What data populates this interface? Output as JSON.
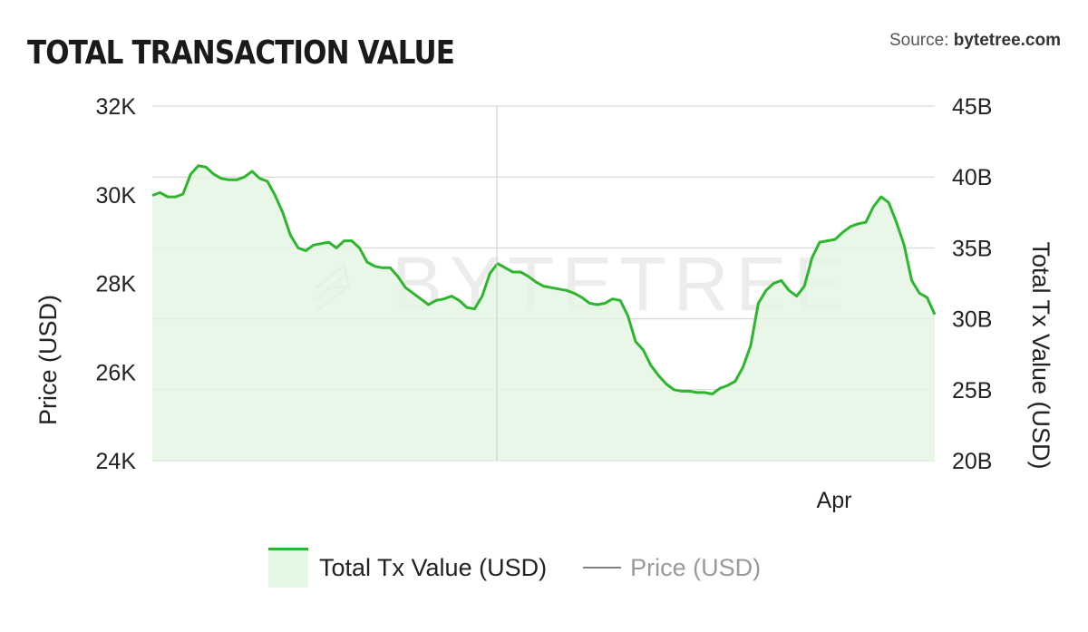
{
  "header": {
    "title": "TOTAL TRANSACTION VALUE",
    "source_prefix": "Source: ",
    "source_name": "bytetree.com"
  },
  "watermark": "BYTETREE",
  "colors": {
    "series_line": "#2db52d",
    "series_fill": "#e4f6e4",
    "grid": "#d0d0d0",
    "price_line": "#808080"
  },
  "chart_data": {
    "type": "area",
    "title": "TOTAL TRANSACTION VALUE",
    "y_left": {
      "label": "Price (USD)",
      "ticks": [
        "24K",
        "26K",
        "28K",
        "30K",
        "32K"
      ],
      "range": [
        24000,
        32000
      ]
    },
    "y_right": {
      "label": "Total Tx Value (USD)",
      "ticks": [
        "20B",
        "25B",
        "30B",
        "35B",
        "40B",
        "45B"
      ],
      "range": [
        20,
        45
      ]
    },
    "x_tick_labels": [
      "Apr"
    ],
    "grid": true,
    "legend_position": "bottom",
    "series": [
      {
        "name": "Total Tx Value (USD)",
        "axis": "right",
        "style": "area",
        "values": [
          38.7,
          38.9,
          38.6,
          38.6,
          38.8,
          40.2,
          40.8,
          40.7,
          40.2,
          39.9,
          39.8,
          39.8,
          40.0,
          40.4,
          39.9,
          39.7,
          38.7,
          37.5,
          35.9,
          35.0,
          34.8,
          35.2,
          35.3,
          35.4,
          35.0,
          35.5,
          35.5,
          35.0,
          34.0,
          33.7,
          33.6,
          33.6,
          33.0,
          32.2,
          31.8,
          31.4,
          31.0,
          31.3,
          31.4,
          31.6,
          31.3,
          30.8,
          30.7,
          31.6,
          33.2,
          33.9,
          33.6,
          33.3,
          33.3,
          33.0,
          32.6,
          32.3,
          32.2,
          32.1,
          32.0,
          31.8,
          31.5,
          31.1,
          31.0,
          31.1,
          31.4,
          31.3,
          30.2,
          28.4,
          27.8,
          26.7,
          26.0,
          25.4,
          25.0,
          24.9,
          24.9,
          24.8,
          24.8,
          24.7,
          25.1,
          25.3,
          25.6,
          26.6,
          28.1,
          31.1,
          32.0,
          32.5,
          32.7,
          32.0,
          31.6,
          32.3,
          34.3,
          35.4,
          35.5,
          35.6,
          36.1,
          36.5,
          36.7,
          36.8,
          37.9,
          38.6,
          38.2,
          36.8,
          35.2,
          32.7,
          31.8,
          31.5,
          30.3
        ]
      },
      {
        "name": "Price (USD)",
        "axis": "left",
        "style": "line",
        "values": []
      }
    ]
  },
  "legend": {
    "items": [
      {
        "label": "Total Tx Value (USD)"
      },
      {
        "label": "Price (USD)"
      }
    ]
  }
}
